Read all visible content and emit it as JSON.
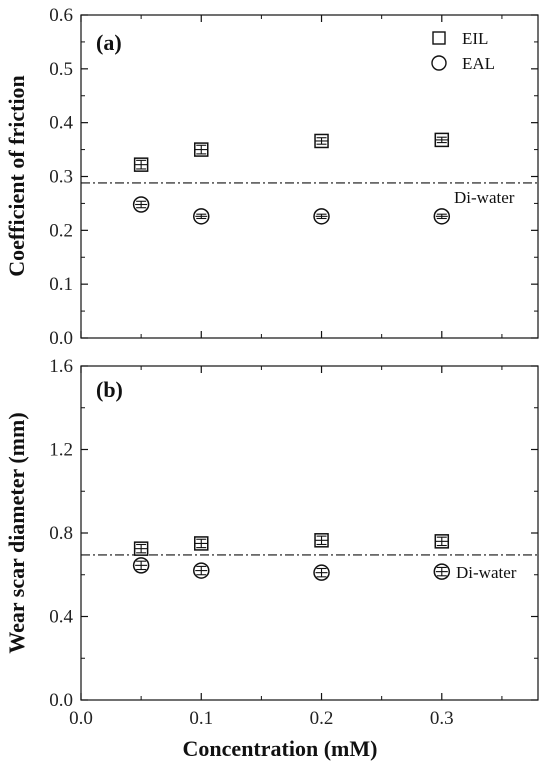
{
  "chart_data": [
    {
      "type": "scatter",
      "panel_label": "(a)",
      "ylabel": "Coefficient of friction",
      "ylim": [
        0.0,
        0.6
      ],
      "yticks": [
        "0.0",
        "0.1",
        "0.2",
        "0.3",
        "0.4",
        "0.5",
        "0.6"
      ],
      "xlim": [
        0.0,
        0.38
      ],
      "x": [
        0.05,
        0.1,
        0.2,
        0.3
      ],
      "series": [
        {
          "name": "EIL",
          "marker": "square",
          "values": [
            0.322,
            0.35,
            0.366,
            0.368
          ],
          "err": [
            0.008,
            0.008,
            0.006,
            0.005
          ]
        },
        {
          "name": "EAL",
          "marker": "circle",
          "values": [
            0.248,
            0.226,
            0.226,
            0.226
          ],
          "err": [
            0.006,
            0.004,
            0.004,
            0.004
          ]
        }
      ],
      "reference_line": {
        "label": "Di-water",
        "value": 0.288
      },
      "legend_position": "top-right"
    },
    {
      "type": "scatter",
      "panel_label": "(b)",
      "ylabel": "Wear scar diameter (mm)",
      "xlabel": "Concentration (mM)",
      "ylim": [
        0.0,
        1.6
      ],
      "yticks": [
        "0.0",
        "0.4",
        "0.8",
        "1.2",
        "1.6"
      ],
      "xlim": [
        0.0,
        0.38
      ],
      "xticks": [
        "0.0",
        "0.1",
        "0.2",
        "0.3"
      ],
      "x": [
        0.05,
        0.1,
        0.2,
        0.3
      ],
      "series": [
        {
          "name": "EIL",
          "marker": "square",
          "values": [
            0.725,
            0.75,
            0.765,
            0.76
          ],
          "err": [
            0.02,
            0.02,
            0.02,
            0.02
          ]
        },
        {
          "name": "EAL",
          "marker": "circle",
          "values": [
            0.645,
            0.62,
            0.61,
            0.615
          ],
          "err": [
            0.02,
            0.02,
            0.02,
            0.02
          ]
        }
      ],
      "reference_line": {
        "label": "Di-water",
        "value": 0.695
      }
    }
  ]
}
